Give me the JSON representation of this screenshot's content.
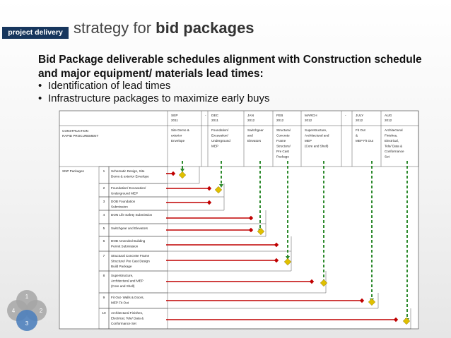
{
  "header": {
    "badge": "project delivery",
    "title_prefix": "strategy for ",
    "title_bold": "bid packages"
  },
  "subheading_line1": "Bid Package deliverable schedules alignment with Construction schedule",
  "subheading_line2": "and major equipment/ materials lead times:",
  "bullets": [
    "Identification of lead times",
    "Infrastructure packages to maximize early buys"
  ],
  "schedule": {
    "row_label_construction": [
      "CONSTRUCTION",
      "RAPID PROCUREMENT"
    ],
    "row_label_snp": "SNP Packages",
    "columns": [
      {
        "month": "SEP",
        "year": "2011",
        "milestone": [
          "Site Demo &",
          "exterior",
          "Envelope"
        ]
      },
      {
        "month": "-",
        "year": "",
        "milestone": []
      },
      {
        "month": "DEC",
        "year": "2011",
        "milestone": [
          "Foundation/",
          "Excavation/",
          "Underground",
          "MEP"
        ]
      },
      {
        "month": "JAN",
        "year": "2012",
        "milestone": [
          "Switchgear",
          "and",
          "Elevators"
        ]
      },
      {
        "month": "FEB",
        "year": "2012",
        "milestone": [
          "Structural",
          "Concrete",
          "Frame",
          "Structure/",
          "Pre Cast",
          "Package"
        ]
      },
      {
        "month": "MARCH",
        "year": "2012",
        "milestone": [
          "Superstructure,",
          "Architectural and",
          "MEP",
          "(Core and Shell)"
        ]
      },
      {
        "month": "-",
        "year": "",
        "milestone": []
      },
      {
        "month": "JULY",
        "year": "2012",
        "milestone": [
          "Fit Out",
          "&",
          "MEP Fit Out"
        ]
      },
      {
        "month": "AUG",
        "year": "2012",
        "milestone": [
          "Architectural",
          "Finishes,",
          "Electrical,",
          "Tele/ Data &",
          "Conformance",
          "Set"
        ]
      }
    ],
    "packages": [
      {
        "num": "1",
        "lines": [
          "Schematic Design, Site",
          "Demo & exterior Envelope"
        ],
        "diamond_col": 0
      },
      {
        "num": "2",
        "lines": [
          "Foundation/ Excavation/",
          "Underground MEP"
        ],
        "diamond_col": 2
      },
      {
        "num": "3",
        "lines": [
          "DOB Foundation",
          "Submission"
        ],
        "diamond_col": null
      },
      {
        "num": "4",
        "lines": [
          "DON Life Safety Submission"
        ],
        "diamond_col": null
      },
      {
        "num": "5",
        "lines": [
          "Switchgear and Elevators"
        ],
        "diamond_col": 3
      },
      {
        "num": "6",
        "lines": [
          "DOB Amended Building",
          "Permit Submission"
        ],
        "diamond_col": null
      },
      {
        "num": "7",
        "lines": [
          "Structural Concrete Frame",
          "Structure/ Pre Cast Design",
          "Build Package"
        ],
        "diamond_col": 4
      },
      {
        "num": "8",
        "lines": [
          "Superstructure,",
          "Architectural and MEP",
          "(Core and Shell)"
        ],
        "diamond_col": 5
      },
      {
        "num": "9",
        "lines": [
          "Fit Out- Walls & Doors,",
          "MEP Fit Out"
        ],
        "diamond_col": 7
      },
      {
        "num": "10",
        "lines": [
          "Architectural Finishes,",
          "Electrical, Tele/ Data &",
          "Conformance Set"
        ],
        "diamond_col": 8
      }
    ]
  },
  "venn": [
    "1",
    "2",
    "3",
    "4"
  ],
  "colors": {
    "badge": "#17365d",
    "red_line": "#c00000",
    "diamond": "#e0c000",
    "arrow_green": "#2e8b2e",
    "venn_highlight": "#4f81bd",
    "venn_gray": "#a6a6a6"
  }
}
